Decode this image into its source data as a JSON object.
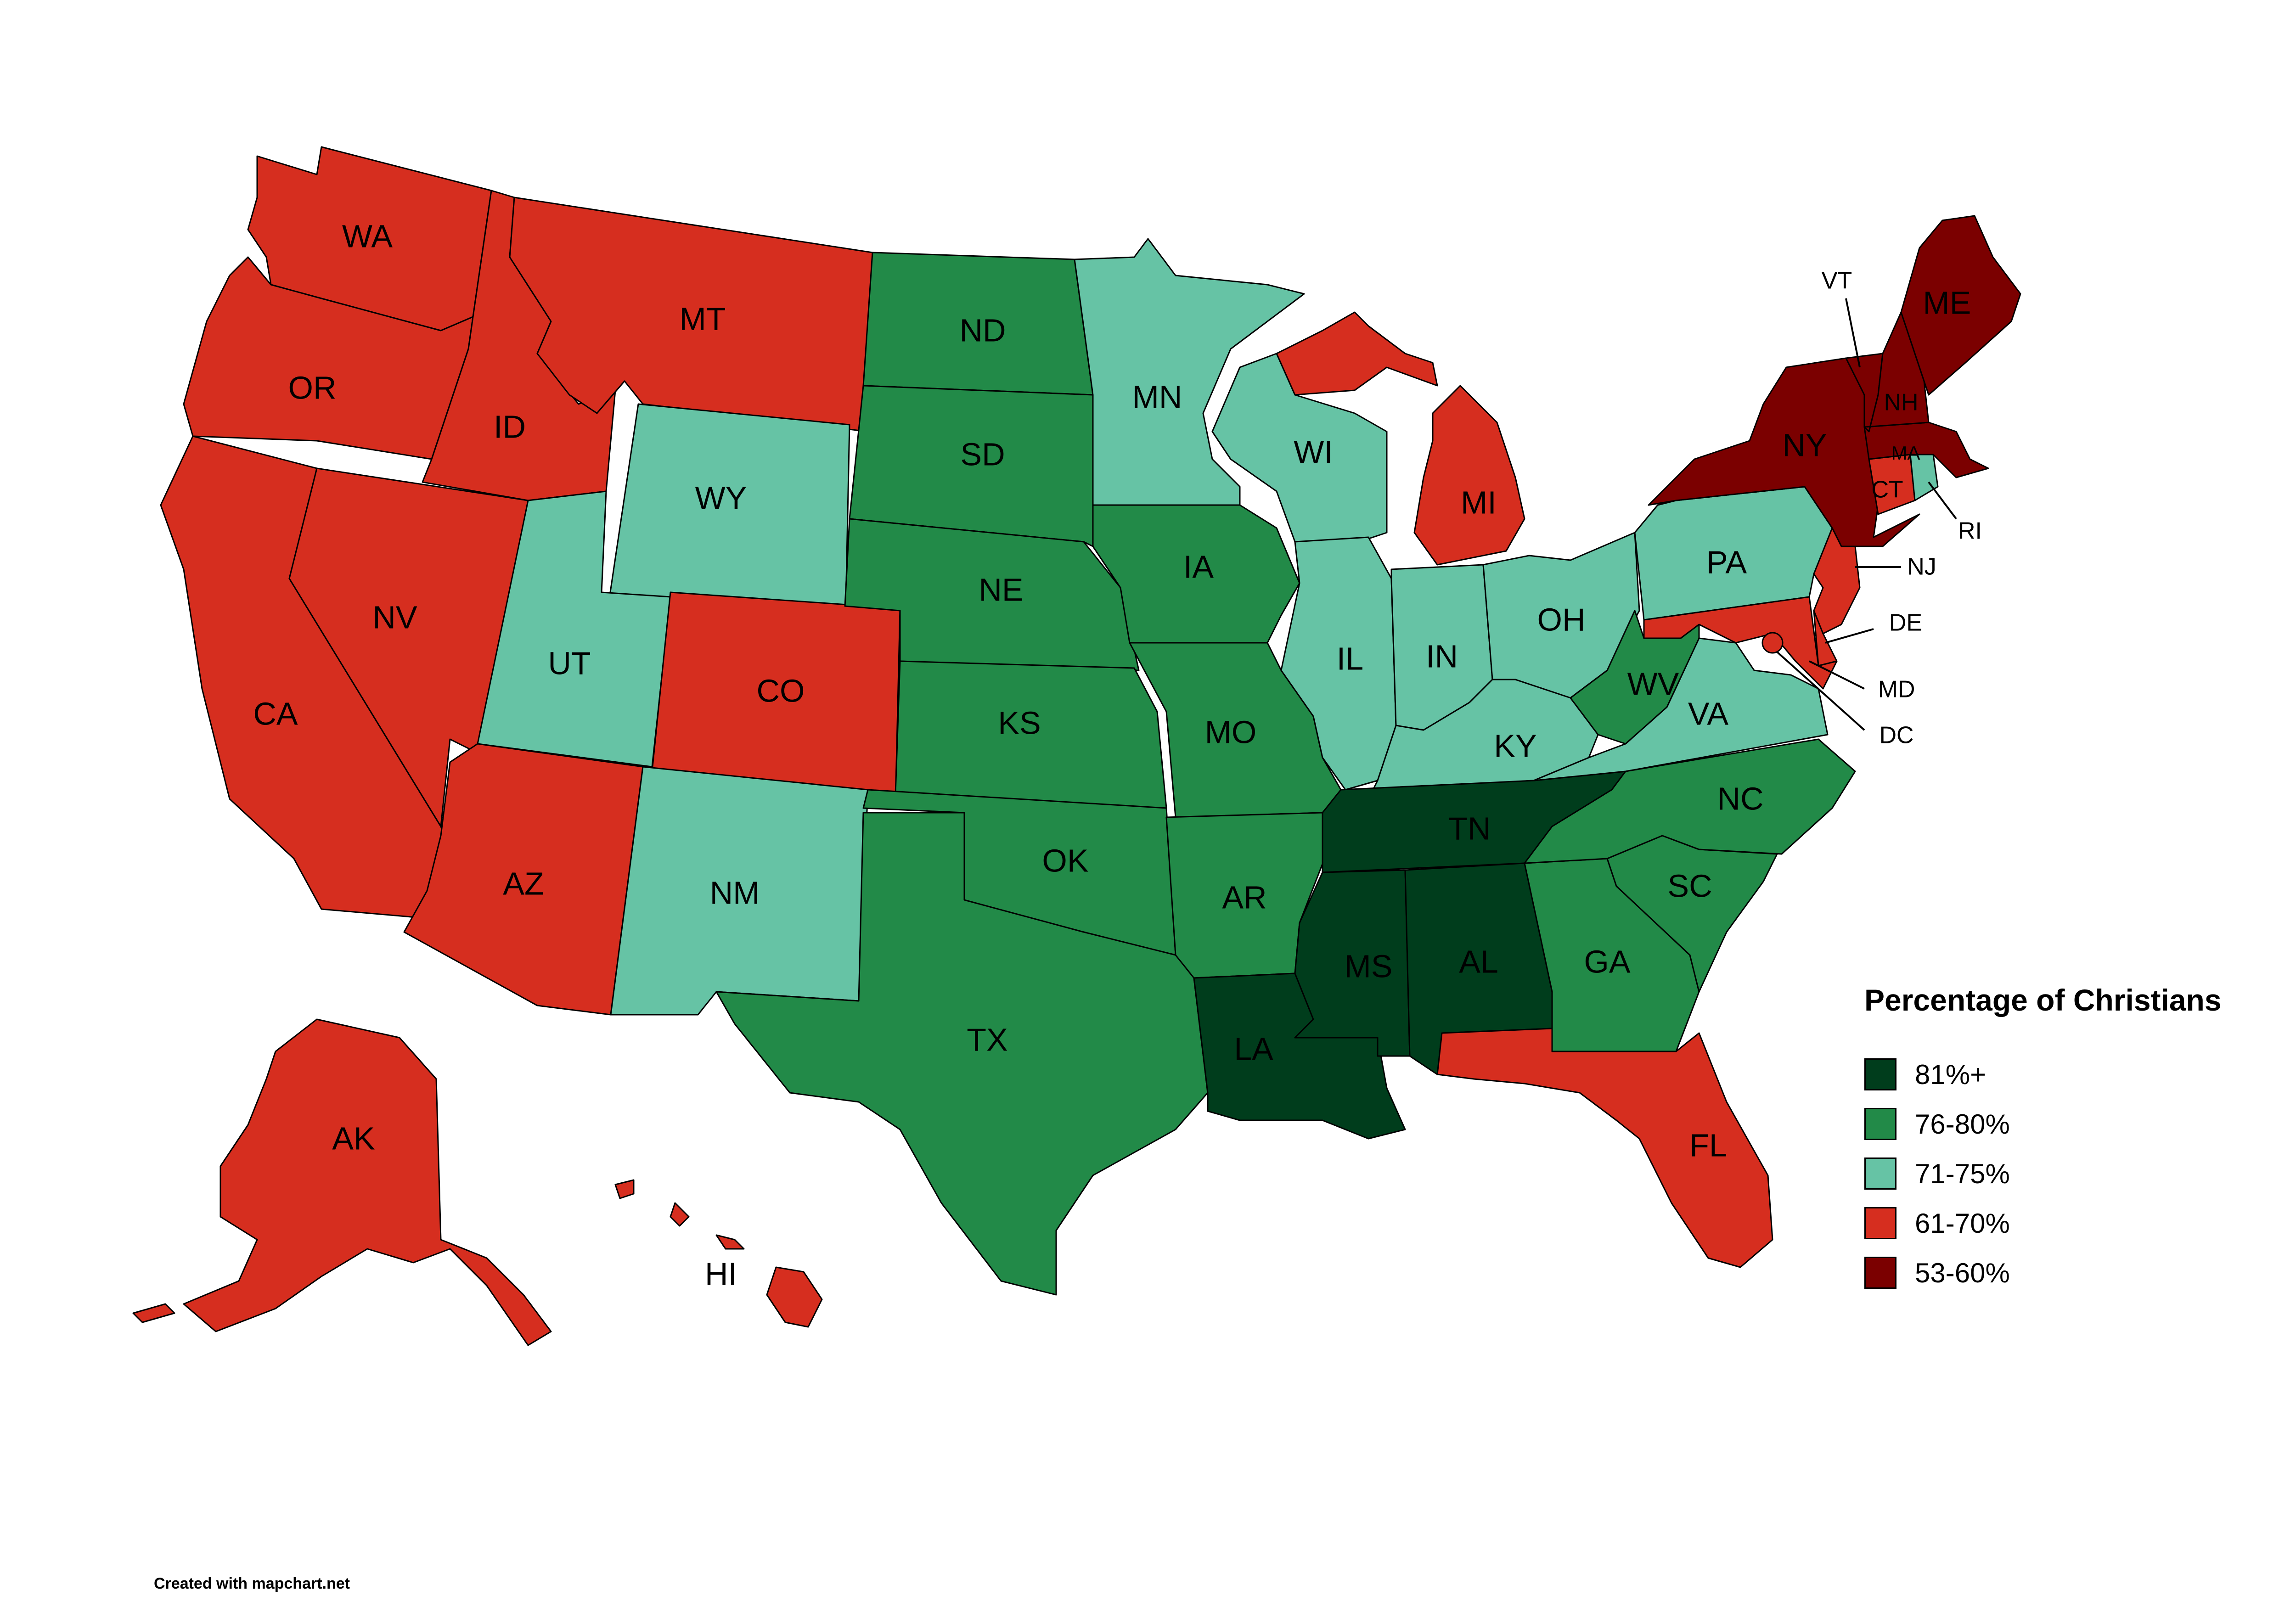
{
  "colors": {
    "c81": "#003d1c",
    "c76": "#228a48",
    "c71": "#66c3a5",
    "c61": "#d62e1f",
    "c53": "#7b0000"
  },
  "legend": {
    "title": "Percentage of Christians",
    "items": [
      {
        "label": "81%+",
        "color": "#003d1c"
      },
      {
        "label": "76-80%",
        "color": "#228a48"
      },
      {
        "label": "71-75%",
        "color": "#66c3a5"
      },
      {
        "label": "61-70%",
        "color": "#d62e1f"
      },
      {
        "label": "53-60%",
        "color": "#7b0000"
      }
    ]
  },
  "credit": "Created with mapchart.net",
  "states": {
    "WA": {
      "label": "WA",
      "category": "61-70%"
    },
    "OR": {
      "label": "OR",
      "category": "61-70%"
    },
    "CA": {
      "label": "CA",
      "category": "61-70%"
    },
    "NV": {
      "label": "NV",
      "category": "61-70%"
    },
    "ID": {
      "label": "ID",
      "category": "61-70%"
    },
    "MT": {
      "label": "MT",
      "category": "61-70%"
    },
    "WY": {
      "label": "WY",
      "category": "71-75%"
    },
    "UT": {
      "label": "UT",
      "category": "71-75%"
    },
    "CO": {
      "label": "CO",
      "category": "61-70%"
    },
    "AZ": {
      "label": "AZ",
      "category": "61-70%"
    },
    "NM": {
      "label": "NM",
      "category": "71-75%"
    },
    "ND": {
      "label": "ND",
      "category": "76-80%"
    },
    "SD": {
      "label": "SD",
      "category": "76-80%"
    },
    "NE": {
      "label": "NE",
      "category": "76-80%"
    },
    "KS": {
      "label": "KS",
      "category": "76-80%"
    },
    "OK": {
      "label": "OK",
      "category": "76-80%"
    },
    "TX": {
      "label": "TX",
      "category": "76-80%"
    },
    "MN": {
      "label": "MN",
      "category": "71-75%"
    },
    "IA": {
      "label": "IA",
      "category": "76-80%"
    },
    "MO": {
      "label": "MO",
      "category": "76-80%"
    },
    "AR": {
      "label": "AR",
      "category": "76-80%"
    },
    "LA": {
      "label": "LA",
      "category": "81%+"
    },
    "WI": {
      "label": "WI",
      "category": "71-75%"
    },
    "IL": {
      "label": "IL",
      "category": "71-75%"
    },
    "MI": {
      "label": "MI",
      "category": "61-70%"
    },
    "IN": {
      "label": "IN",
      "category": "71-75%"
    },
    "OH": {
      "label": "OH",
      "category": "71-75%"
    },
    "KY": {
      "label": "KY",
      "category": "71-75%"
    },
    "TN": {
      "label": "TN",
      "category": "81%+"
    },
    "MS": {
      "label": "MS",
      "category": "81%+"
    },
    "AL": {
      "label": "AL",
      "category": "81%+"
    },
    "GA": {
      "label": "GA",
      "category": "76-80%"
    },
    "FL": {
      "label": "FL",
      "category": "61-70%"
    },
    "SC": {
      "label": "SC",
      "category": "76-80%"
    },
    "NC": {
      "label": "NC",
      "category": "76-80%"
    },
    "VA": {
      "label": "VA",
      "category": "71-75%"
    },
    "WV": {
      "label": "WV",
      "category": "76-80%"
    },
    "PA": {
      "label": "PA",
      "category": "71-75%"
    },
    "NY": {
      "label": "NY",
      "category": "53-60%"
    },
    "NJ": {
      "label": "NJ",
      "category": "61-70%"
    },
    "DE": {
      "label": "DE",
      "category": "61-70%"
    },
    "MD": {
      "label": "MD",
      "category": "61-70%"
    },
    "DC": {
      "label": "DC",
      "category": "61-70%"
    },
    "CT": {
      "label": "CT",
      "category": "61-70%"
    },
    "RI": {
      "label": "RI",
      "category": "71-75%"
    },
    "MA": {
      "label": "MA",
      "category": "53-60%"
    },
    "VT": {
      "label": "VT",
      "category": "53-60%"
    },
    "NH": {
      "label": "NH",
      "category": "53-60%"
    },
    "ME": {
      "label": "ME",
      "category": "53-60%"
    },
    "AK": {
      "label": "AK",
      "category": "61-70%"
    },
    "HI": {
      "label": "HI",
      "category": "61-70%"
    }
  }
}
